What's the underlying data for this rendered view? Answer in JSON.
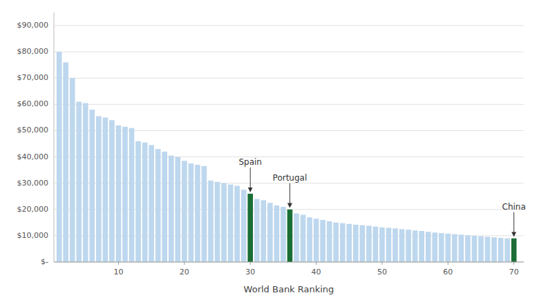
{
  "chart_data": {
    "type": "bar",
    "x_label": "World Bank Ranking",
    "x": [
      1,
      2,
      3,
      4,
      5,
      6,
      7,
      8,
      9,
      10,
      11,
      12,
      13,
      14,
      15,
      16,
      17,
      18,
      19,
      20,
      21,
      22,
      23,
      24,
      25,
      26,
      27,
      28,
      29,
      30,
      31,
      32,
      33,
      34,
      35,
      36,
      37,
      38,
      39,
      40,
      41,
      42,
      43,
      44,
      45,
      46,
      47,
      48,
      49,
      50,
      51,
      52,
      53,
      54,
      55,
      56,
      57,
      58,
      59,
      60,
      61,
      62,
      63,
      64,
      65,
      66,
      67,
      68,
      69,
      70
    ],
    "values": [
      80000,
      76000,
      70000,
      61000,
      60500,
      58000,
      55500,
      55000,
      54000,
      52000,
      51500,
      51000,
      46000,
      45500,
      44500,
      43000,
      42000,
      40500,
      40000,
      38500,
      37500,
      37000,
      36500,
      31000,
      30500,
      30000,
      29500,
      29000,
      27500,
      26000,
      24000,
      23500,
      22500,
      21500,
      21000,
      20000,
      18500,
      18000,
      17000,
      16500,
      16000,
      15500,
      15000,
      14800,
      14500,
      14200,
      14000,
      13800,
      13500,
      13200,
      13000,
      12800,
      12500,
      12300,
      12000,
      11800,
      11500,
      11200,
      11000,
      10800,
      10600,
      10400,
      10200,
      10000,
      9800,
      9600,
      9400,
      9200,
      9000,
      9000
    ],
    "colors": [
      "#bdd7ee",
      "#bdd7ee",
      "#bdd7ee",
      "#bdd7ee",
      "#bdd7ee",
      "#bdd7ee",
      "#bdd7ee",
      "#bdd7ee",
      "#bdd7ee",
      "#bdd7ee",
      "#bdd7ee",
      "#bdd7ee",
      "#bdd7ee",
      "#bdd7ee",
      "#bdd7ee",
      "#bdd7ee",
      "#bdd7ee",
      "#bdd7ee",
      "#bdd7ee",
      "#bdd7ee",
      "#bdd7ee",
      "#bdd7ee",
      "#bdd7ee",
      "#bdd7ee",
      "#bdd7ee",
      "#bdd7ee",
      "#bdd7ee",
      "#bdd7ee",
      "#bdd7ee",
      "#1a6e35",
      "#bdd7ee",
      "#bdd7ee",
      "#bdd7ee",
      "#bdd7ee",
      "#bdd7ee",
      "#1a6e35",
      "#bdd7ee",
      "#bdd7ee",
      "#bdd7ee",
      "#bdd7ee",
      "#bdd7ee",
      "#bdd7ee",
      "#bdd7ee",
      "#bdd7ee",
      "#bdd7ee",
      "#bdd7ee",
      "#bdd7ee",
      "#bdd7ee",
      "#bdd7ee",
      "#bdd7ee",
      "#bdd7ee",
      "#bdd7ee",
      "#bdd7ee",
      "#bdd7ee",
      "#bdd7ee",
      "#bdd7ee",
      "#bdd7ee",
      "#bdd7ee",
      "#bdd7ee",
      "#bdd7ee",
      "#bdd7ee",
      "#bdd7ee",
      "#bdd7ee",
      "#bdd7ee",
      "#bdd7ee",
      "#bdd7ee",
      "#bdd7ee",
      "#bdd7ee",
      "#bdd7ee",
      "#1a6e35"
    ],
    "xlim": [
      0.2,
      71.5
    ],
    "xticks": [
      10,
      20,
      30,
      40,
      50,
      60,
      70
    ],
    "ylim": [
      0,
      95000
    ],
    "yticks": [
      {
        "value": 0,
        "label": "$-"
      },
      {
        "value": 10000,
        "label": "$10,000"
      },
      {
        "value": 20000,
        "label": "$20,000"
      },
      {
        "value": 30000,
        "label": "$30,000"
      },
      {
        "value": 40000,
        "label": "$40,000"
      },
      {
        "value": 50000,
        "label": "$50,000"
      },
      {
        "value": 60000,
        "label": "$60,000"
      },
      {
        "value": 70000,
        "label": "$70,000"
      },
      {
        "value": 80000,
        "label": "$80,000"
      },
      {
        "value": 90000,
        "label": "$90,000"
      }
    ],
    "grid": true,
    "annotations": [
      {
        "text": "Spain",
        "x": 30
      },
      {
        "text": "Portugal",
        "x": 36
      },
      {
        "text": "China",
        "x": 70
      }
    ]
  }
}
